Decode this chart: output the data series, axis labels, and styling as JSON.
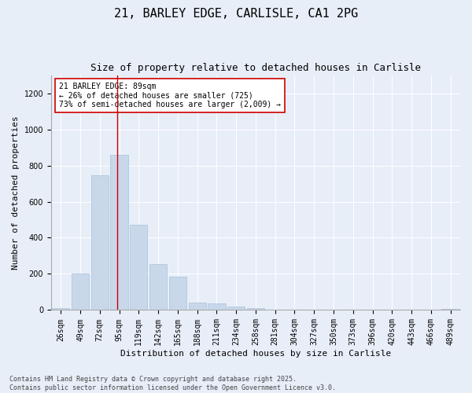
{
  "title1": "21, BARLEY EDGE, CARLISLE, CA1 2PG",
  "title2": "Size of property relative to detached houses in Carlisle",
  "xlabel": "Distribution of detached houses by size in Carlisle",
  "ylabel": "Number of detached properties",
  "categories": [
    "26sqm",
    "49sqm",
    "72sqm",
    "95sqm",
    "119sqm",
    "142sqm",
    "165sqm",
    "188sqm",
    "211sqm",
    "234sqm",
    "258sqm",
    "281sqm",
    "304sqm",
    "327sqm",
    "350sqm",
    "373sqm",
    "396sqm",
    "420sqm",
    "443sqm",
    "466sqm",
    "489sqm"
  ],
  "values": [
    10,
    200,
    745,
    860,
    470,
    255,
    185,
    40,
    35,
    20,
    12,
    2,
    2,
    0,
    0,
    0,
    0,
    0,
    0,
    0,
    8
  ],
  "bar_color": "#c8d8ea",
  "bar_edge_color": "#a8c0d8",
  "vline_x_index": 2.88,
  "vline_color": "#cc0000",
  "annotation_text": "21 BARLEY EDGE: 89sqm\n← 26% of detached houses are smaller (725)\n73% of semi-detached houses are larger (2,009) →",
  "annotation_box_color": "#ffffff",
  "annotation_box_edgecolor": "#cc0000",
  "ylim": [
    0,
    1300
  ],
  "yticks": [
    0,
    200,
    400,
    600,
    800,
    1000,
    1200
  ],
  "background_color": "#e8eef8",
  "footer": "Contains HM Land Registry data © Crown copyright and database right 2025.\nContains public sector information licensed under the Open Government Licence v3.0.",
  "title_fontsize": 11,
  "subtitle_fontsize": 9,
  "axis_label_fontsize": 8,
  "tick_fontsize": 7,
  "annotation_fontsize": 7,
  "footer_fontsize": 6
}
